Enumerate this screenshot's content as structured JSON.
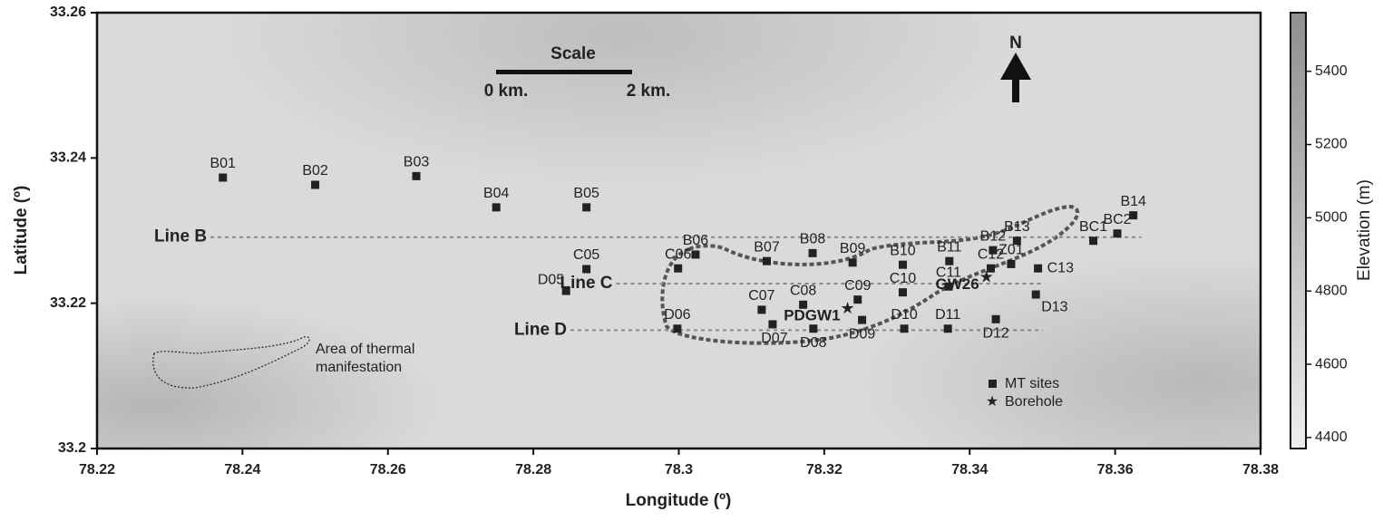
{
  "chart_data": {
    "type": "scatter",
    "xlabel": "Longitude (º)",
    "ylabel": "Latitude (º)",
    "xlim": [
      78.22,
      78.38
    ],
    "xticks": [
      78.22,
      78.24,
      78.26,
      78.28,
      78.3,
      78.32,
      78.34,
      78.36,
      78.38
    ],
    "ylim": [
      33.2,
      33.26
    ],
    "yticks": [
      33.2,
      33.22,
      33.24,
      33.26
    ],
    "colorbar": {
      "label": "Elevation (m)",
      "lim": [
        4370,
        5560
      ],
      "ticks": [
        4400,
        4600,
        4800,
        5000,
        5200,
        5400
      ]
    },
    "sites": {
      "name": "MT sites",
      "color": "#222222",
      "points": [
        {
          "name": "B01",
          "lon": 78.2373,
          "lat": 33.2373
        },
        {
          "name": "B02",
          "lon": 78.25,
          "lat": 33.2363
        },
        {
          "name": "B03",
          "lon": 78.2639,
          "lat": 33.2375
        },
        {
          "name": "B04",
          "lon": 78.2749,
          "lat": 33.2332
        },
        {
          "name": "B05",
          "lon": 78.2873,
          "lat": 33.2332
        },
        {
          "name": "B06",
          "lon": 78.3023,
          "lat": 33.2267
        },
        {
          "name": "B07",
          "lon": 78.3121,
          "lat": 33.2258
        },
        {
          "name": "B08",
          "lon": 78.3184,
          "lat": 33.2269
        },
        {
          "name": "B09",
          "lon": 78.3239,
          "lat": 33.2256
        },
        {
          "name": "B10",
          "lon": 78.3308,
          "lat": 33.2253
        },
        {
          "name": "B11",
          "lon": 78.3372,
          "lat": 33.2258
        },
        {
          "name": "B12",
          "lon": 78.3432,
          "lat": 33.2273
        },
        {
          "name": "B13",
          "lon": 78.3465,
          "lat": 33.2286
        },
        {
          "name": "BC1",
          "lon": 78.357,
          "lat": 33.2286
        },
        {
          "name": "BC2",
          "lon": 78.3603,
          "lat": 33.2296
        },
        {
          "name": "B14",
          "lon": 78.3625,
          "lat": 33.2321
        },
        {
          "name": "C05",
          "lon": 78.2873,
          "lat": 33.2247
        },
        {
          "name": "C06",
          "lon": 78.2999,
          "lat": 33.2248
        },
        {
          "name": "C07",
          "lon": 78.3114,
          "lat": 33.2191
        },
        {
          "name": "C08",
          "lon": 78.3171,
          "lat": 33.2198
        },
        {
          "name": "C09",
          "lon": 78.3246,
          "lat": 33.2205
        },
        {
          "name": "C10",
          "lon": 78.3308,
          "lat": 33.2215
        },
        {
          "name": "C11",
          "lon": 78.3371,
          "lat": 33.2223
        },
        {
          "name": "C12",
          "lon": 78.3429,
          "lat": 33.2248
        },
        {
          "name": "Z01",
          "lon": 78.3457,
          "lat": 33.2254
        },
        {
          "name": "C13",
          "lon": 78.3494,
          "lat": 33.2248
        },
        {
          "name": "D05",
          "lon": 78.2845,
          "lat": 33.2217
        },
        {
          "name": "D06",
          "lon": 78.2998,
          "lat": 33.2165
        },
        {
          "name": "D07",
          "lon": 78.3129,
          "lat": 33.2171
        },
        {
          "name": "D08",
          "lon": 78.3185,
          "lat": 33.2165
        },
        {
          "name": "D09",
          "lon": 78.3252,
          "lat": 33.2177
        },
        {
          "name": "D10",
          "lon": 78.331,
          "lat": 33.2165
        },
        {
          "name": "D11",
          "lon": 78.337,
          "lat": 33.2165
        },
        {
          "name": "D12",
          "lon": 78.3436,
          "lat": 33.2178
        },
        {
          "name": "D13",
          "lon": 78.3491,
          "lat": 33.2212
        }
      ]
    },
    "boreholes": {
      "name": "Borehole",
      "color": "#222222",
      "points": [
        {
          "name": "PDGW1",
          "lon": 78.3232,
          "lat": 33.2192
        },
        {
          "name": "GW26",
          "lon": 78.3423,
          "lat": 33.2235
        }
      ]
    },
    "profiles": [
      {
        "name": "Line B",
        "lat": 33.2291,
        "lon": [
          78.2356,
          78.3636
        ]
      },
      {
        "name": "Line C",
        "lat": 33.2227,
        "lon": [
          78.2914,
          78.35
        ]
      },
      {
        "name": "Line D",
        "lat": 33.2163,
        "lon": [
          78.2851,
          78.35
        ]
      }
    ],
    "scale_bar": {
      "title": "Scale",
      "start": "0 km.",
      "end": "2 km."
    },
    "north": "N",
    "annotation": [
      "Area of thermal",
      "manifestation"
    ]
  }
}
